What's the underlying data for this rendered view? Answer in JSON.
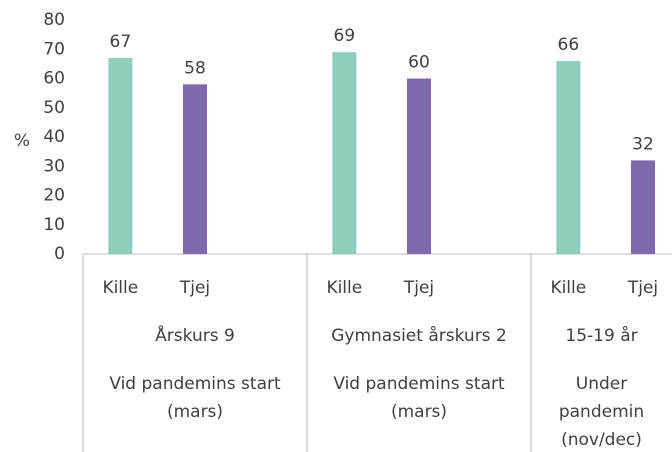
{
  "chart_data": {
    "type": "bar",
    "y_axis_label": "%",
    "categories": [
      "Årskurs 9",
      "Gymnasiet årskurs 2",
      "15-19 år"
    ],
    "category_groups": [
      "Vid pandemins start (mars)",
      "Vid pandemins start (mars)",
      "Under pandemin (nov/dec)"
    ],
    "series": [
      {
        "name": "Kille",
        "color": "#8fcdbd",
        "values": [
          67,
          69,
          66
        ]
      },
      {
        "name": "Tjej",
        "color": "#7f69ab",
        "values": [
          58,
          60,
          32
        ]
      }
    ],
    "ylim": [
      0,
      80
    ],
    "yticks": [
      0,
      10,
      20,
      30,
      40,
      50,
      60,
      70,
      80
    ],
    "grid": false
  }
}
